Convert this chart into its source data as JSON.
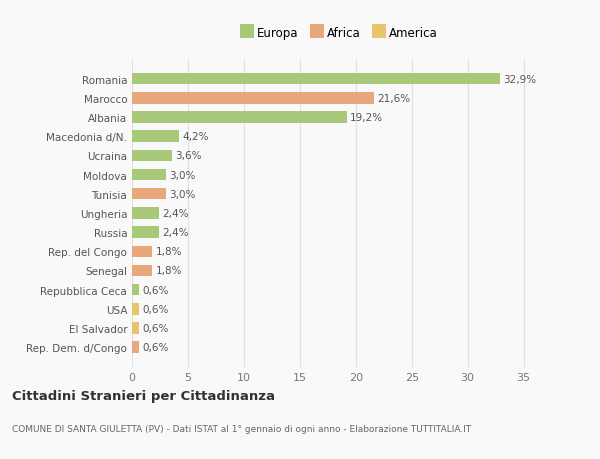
{
  "categories": [
    "Rep. Dem. d/Congo",
    "El Salvador",
    "USA",
    "Repubblica Ceca",
    "Senegal",
    "Rep. del Congo",
    "Russia",
    "Ungheria",
    "Tunisia",
    "Moldova",
    "Ucraina",
    "Macedonia d/N.",
    "Albania",
    "Marocco",
    "Romania"
  ],
  "values": [
    0.6,
    0.6,
    0.6,
    0.6,
    1.8,
    1.8,
    2.4,
    2.4,
    3.0,
    3.0,
    3.6,
    4.2,
    19.2,
    21.6,
    32.9
  ],
  "colors": [
    "#e8a87c",
    "#e8c46a",
    "#e8c46a",
    "#a8c87a",
    "#e8a87c",
    "#e8a87c",
    "#a8c87a",
    "#a8c87a",
    "#e8a87c",
    "#a8c87a",
    "#a8c87a",
    "#a8c87a",
    "#a8c87a",
    "#e8a87c",
    "#a8c87a"
  ],
  "labels": [
    "0,6%",
    "0,6%",
    "0,6%",
    "0,6%",
    "1,8%",
    "1,8%",
    "2,4%",
    "2,4%",
    "3,0%",
    "3,0%",
    "3,6%",
    "4,2%",
    "19,2%",
    "21,6%",
    "32,9%"
  ],
  "legend_labels": [
    "Europa",
    "Africa",
    "America"
  ],
  "legend_colors": [
    "#a8c87a",
    "#e8a87c",
    "#e8c46a"
  ],
  "title": "Cittadini Stranieri per Cittadinanza",
  "subtitle": "COMUNE DI SANTA GIULETTA (PV) - Dati ISTAT al 1° gennaio di ogni anno - Elaborazione TUTTITALIA.IT",
  "xlim": [
    0,
    37
  ],
  "xticks": [
    0,
    5,
    10,
    15,
    20,
    25,
    30,
    35
  ],
  "bg_color": "#f9f9f9",
  "grid_color": "#e0e0e0",
  "bar_height": 0.6
}
